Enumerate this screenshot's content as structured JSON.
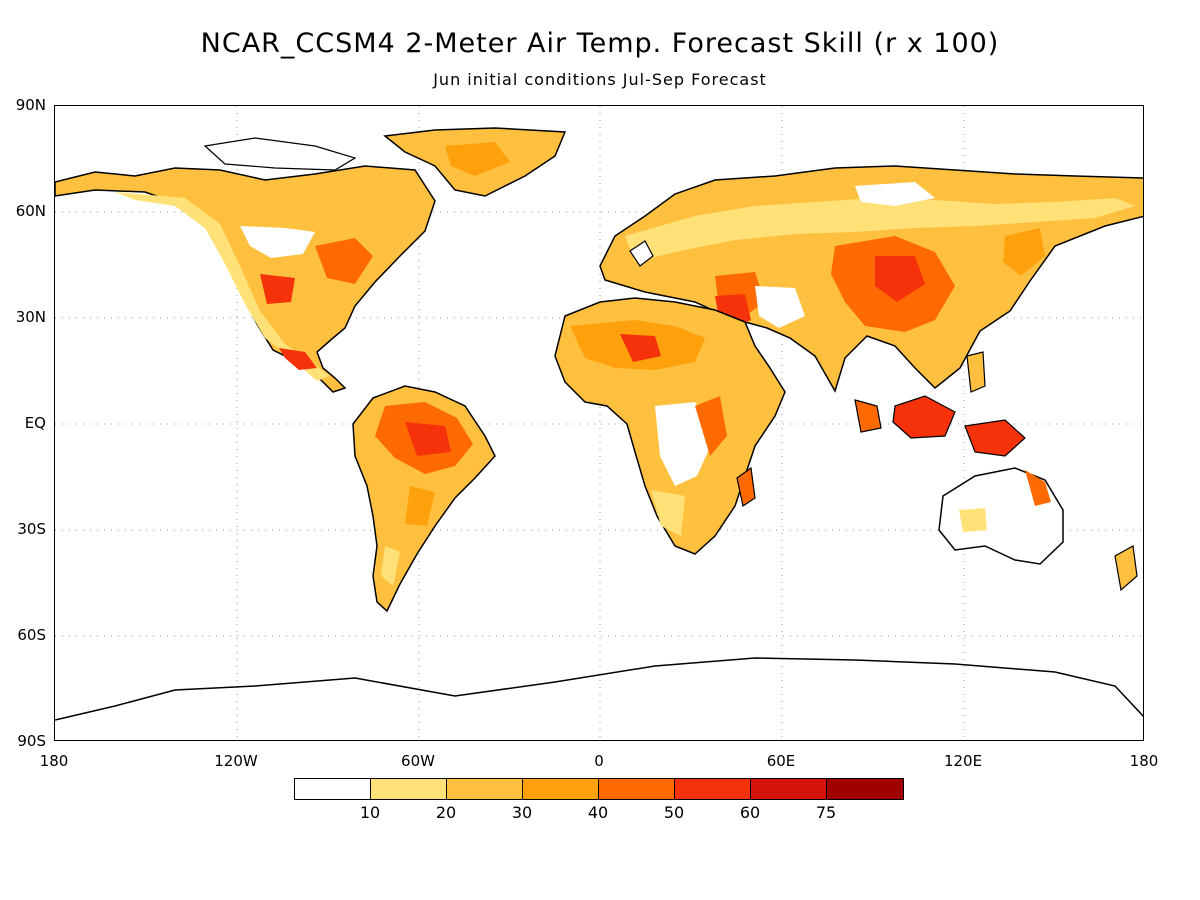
{
  "title": "NCAR_CCSM4 2-Meter Air Temp. Forecast Skill (r x 100)",
  "subtitle": "Jun initial conditions  Jul-Sep Forecast",
  "lat_labels": [
    "90N",
    "60N",
    "30N",
    "EQ",
    "30S",
    "60S",
    "90S"
  ],
  "lon_labels": [
    "180",
    "120W",
    "60W",
    "0",
    "60E",
    "120E",
    "180"
  ],
  "colorbar": {
    "labels": [
      "10",
      "20",
      "30",
      "40",
      "50",
      "60",
      "75"
    ],
    "colors": [
      "#ffffff",
      "#ffe178",
      "#ffc040",
      "#ffa10c",
      "#ff6a00",
      "#f5320a",
      "#d4140a",
      "#a00000"
    ]
  },
  "map": {
    "projection": "equirectangular",
    "lon_range": [
      -180,
      180
    ],
    "lat_range": [
      -90,
      90
    ],
    "gridlines": "dotted",
    "coastline_color": "#000000"
  }
}
